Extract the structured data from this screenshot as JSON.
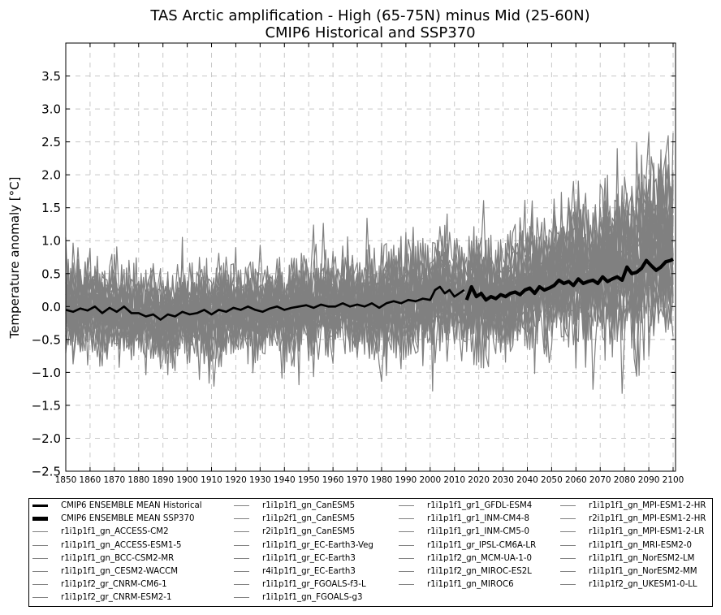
{
  "chart_data": {
    "type": "line",
    "title": "TAS Arctic amplification - High (65-75N) minus Mid (25-60N)",
    "subtitle": "CMIP6 Historical and SSP370",
    "ylabel": "Temperature anomaly [°C]",
    "xlabel": "",
    "xlim": [
      1850,
      2101
    ],
    "ylim": [
      -2.5,
      4.0
    ],
    "x_ticks": [
      1850,
      1860,
      1870,
      1880,
      1890,
      1900,
      1910,
      1920,
      1930,
      1940,
      1950,
      1960,
      1970,
      1980,
      1990,
      2000,
      2010,
      2020,
      2030,
      2040,
      2050,
      2060,
      2070,
      2080,
      2090,
      2100
    ],
    "x_tick_labels": [
      "1850",
      "1860",
      "1870",
      "1880",
      "1890",
      "1900",
      "1910",
      "1920",
      "1930",
      "1940",
      "1950",
      "1960",
      "1970",
      "1980",
      "1990",
      "2000",
      "2010",
      "2020",
      "2030",
      "2040",
      "2050",
      "2060",
      "2070",
      "2080",
      "2090",
      "2100"
    ],
    "y_ticks": [
      -2.5,
      -2.0,
      -1.5,
      -1.0,
      -0.5,
      0.0,
      0.5,
      1.0,
      1.5,
      2.0,
      2.5,
      3.0,
      3.5
    ],
    "y_tick_labels": [
      "−2.5",
      "−2.0",
      "−1.5",
      "−1.0",
      "−0.5",
      "0.0",
      "0.5",
      "1.0",
      "1.5",
      "2.0",
      "2.5",
      "3.0",
      "3.5"
    ],
    "grid": true,
    "legend_position": "below",
    "model_color": "#808080",
    "mean_color": "#000000",
    "series": [
      {
        "name": "CMIP6 ENSEMBLE MEAN Historical",
        "x": [
          1850,
          1853,
          1856,
          1859,
          1862,
          1865,
          1868,
          1871,
          1874,
          1877,
          1880,
          1883,
          1886,
          1889,
          1892,
          1895,
          1898,
          1901,
          1904,
          1907,
          1910,
          1913,
          1916,
          1919,
          1922,
          1925,
          1928,
          1931,
          1934,
          1937,
          1940,
          1943,
          1946,
          1949,
          1952,
          1955,
          1958,
          1961,
          1964,
          1967,
          1970,
          1973,
          1976,
          1979,
          1982,
          1985,
          1988,
          1991,
          1994,
          1997,
          2000,
          2002,
          2004,
          2006,
          2008,
          2010,
          2012,
          2014
        ],
        "y": [
          -0.05,
          -0.08,
          -0.03,
          -0.06,
          0.0,
          -0.1,
          -0.02,
          -0.08,
          0.0,
          -0.1,
          -0.1,
          -0.15,
          -0.12,
          -0.2,
          -0.12,
          -0.15,
          -0.08,
          -0.12,
          -0.1,
          -0.05,
          -0.12,
          -0.05,
          -0.08,
          -0.02,
          -0.05,
          0.0,
          -0.05,
          -0.08,
          -0.03,
          0.0,
          -0.05,
          -0.02,
          0.0,
          0.02,
          -0.02,
          0.03,
          0.0,
          0.0,
          0.05,
          0.0,
          0.03,
          0.0,
          0.05,
          -0.02,
          0.05,
          0.08,
          0.05,
          0.1,
          0.08,
          0.12,
          0.1,
          0.25,
          0.3,
          0.2,
          0.25,
          0.15,
          0.2,
          0.25
        ]
      },
      {
        "name": "CMIP6 ENSEMBLE MEAN SSP370",
        "x": [
          2015,
          2017,
          2019,
          2021,
          2023,
          2025,
          2027,
          2029,
          2031,
          2033,
          2035,
          2037,
          2039,
          2041,
          2043,
          2045,
          2047,
          2049,
          2051,
          2053,
          2055,
          2057,
          2059,
          2061,
          2063,
          2065,
          2067,
          2069,
          2071,
          2073,
          2075,
          2077,
          2079,
          2081,
          2083,
          2085,
          2087,
          2089,
          2091,
          2093,
          2095,
          2097,
          2099,
          2100
        ],
        "y": [
          0.1,
          0.3,
          0.15,
          0.2,
          0.1,
          0.15,
          0.12,
          0.18,
          0.15,
          0.2,
          0.22,
          0.18,
          0.25,
          0.28,
          0.2,
          0.3,
          0.25,
          0.28,
          0.32,
          0.4,
          0.35,
          0.38,
          0.32,
          0.42,
          0.35,
          0.38,
          0.4,
          0.35,
          0.45,
          0.38,
          0.42,
          0.45,
          0.4,
          0.6,
          0.5,
          0.52,
          0.58,
          0.7,
          0.62,
          0.55,
          0.6,
          0.68,
          0.7,
          0.72
        ]
      }
    ],
    "model_series_names": [
      "r1i1p1f1_gn_ACCESS-CM2",
      "r1i1p1f1_gn_ACCESS-ESM1-5",
      "r1i1p1f1_gn_BCC-CSM2-MR",
      "r1i1p1f1_gn_CESM2-WACCM",
      "r1i1p1f2_gr_CNRM-CM6-1",
      "r1i1p1f2_gr_CNRM-ESM2-1",
      "r1i1p1f1_gn_CanESM5",
      "r1i1p2f1_gn_CanESM5",
      "r2i1p1f1_gn_CanESM5",
      "r1i1p1f1_gr_EC-Earth3-Veg",
      "r1i1p1f1_gr_EC-Earth3",
      "r4i1p1f1_gr_EC-Earth3",
      "r1i1p1f1_gr_FGOALS-f3-L",
      "r1i1p1f1_gn_FGOALS-g3",
      "r1i1p1f1_gr1_GFDL-ESM4",
      "r1i1p1f1_gr1_INM-CM4-8",
      "r1i1p1f1_gr1_INM-CM5-0",
      "r1i1p1f1_gr_IPSL-CM6A-LR",
      "r1i1p1f2_gn_MCM-UA-1-0",
      "r1i1p1f2_gn_MIROC-ES2L",
      "r1i1p1f1_gn_MIROC6",
      "r1i1p1f1_gn_MPI-ESM1-2-HR",
      "r2i1p1f1_gn_MPI-ESM1-2-HR",
      "r1i1p1f1_gn_MPI-ESM1-2-LR",
      "r1i1p1f1_gn_MRI-ESM2-0",
      "r1i1p1f1_gn_NorESM2-LM",
      "r1i1p1f1_gn_NorESM2-MM",
      "r1i1p1f2_gn_UKESM1-0-LL"
    ]
  },
  "legend": {
    "columns": [
      [
        "CMIP6 ENSEMBLE MEAN Historical",
        "CMIP6 ENSEMBLE MEAN SSP370",
        "r1i1p1f1_gn_ACCESS-CM2",
        "r1i1p1f1_gn_ACCESS-ESM1-5",
        "r1i1p1f1_gn_BCC-CSM2-MR",
        "r1i1p1f1_gn_CESM2-WACCM",
        "r1i1p1f2_gr_CNRM-CM6-1",
        "r1i1p1f2_gr_CNRM-ESM2-1"
      ],
      [
        "r1i1p1f1_gn_CanESM5",
        "r1i1p2f1_gn_CanESM5",
        "r2i1p1f1_gn_CanESM5",
        "r1i1p1f1_gr_EC-Earth3-Veg",
        "r1i1p1f1_gr_EC-Earth3",
        "r4i1p1f1_gr_EC-Earth3",
        "r1i1p1f1_gr_FGOALS-f3-L",
        "r1i1p1f1_gn_FGOALS-g3"
      ],
      [
        "r1i1p1f1_gr1_GFDL-ESM4",
        "r1i1p1f1_gr1_INM-CM4-8",
        "r1i1p1f1_gr1_INM-CM5-0",
        "r1i1p1f1_gr_IPSL-CM6A-LR",
        "r1i1p1f2_gn_MCM-UA-1-0",
        "r1i1p1f2_gn_MIROC-ES2L",
        "r1i1p1f1_gn_MIROC6"
      ],
      [
        "r1i1p1f1_gn_MPI-ESM1-2-HR",
        "r2i1p1f1_gn_MPI-ESM1-2-HR",
        "r1i1p1f1_gn_MPI-ESM1-2-LR",
        "r1i1p1f1_gn_MRI-ESM2-0",
        "r1i1p1f1_gn_NorESM2-LM",
        "r1i1p1f1_gn_NorESM2-MM",
        "r1i1p1f2_gn_UKESM1-0-LL"
      ]
    ]
  }
}
